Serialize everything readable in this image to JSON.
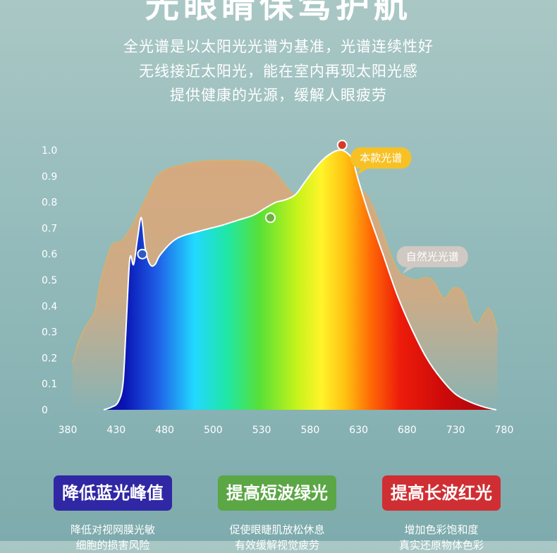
{
  "header": {
    "title": "光眼睛保驾护航",
    "lines": [
      "全光谱是以太阳光光谱为基准，光谱连续性好",
      "无线接近太阳光，能在室内再现太阳光感",
      "提供健康的光源，缓解人眼疲劳"
    ]
  },
  "chart_data": {
    "type": "area",
    "xticks": [
      380,
      430,
      480,
      500,
      530,
      580,
      630,
      680,
      730,
      780
    ],
    "yticks": [
      0,
      0.1,
      0.2,
      0.3,
      0.4,
      0.5,
      0.6,
      0.7,
      0.8,
      0.9,
      1.0
    ],
    "ytick_labels": [
      "0",
      "0.1",
      "0.2",
      "0.3",
      "0.4",
      "0.5",
      "0.6",
      "0.7",
      "0.8",
      "0.9",
      "1.0"
    ],
    "ylim": [
      0,
      1.0
    ],
    "grid": false,
    "series": [
      {
        "name": "自然光光谱",
        "color": "#d6a97e",
        "x": [
          385,
          392,
          400,
          408,
          414,
          425,
          435,
          445,
          460,
          475,
          490,
          500,
          515,
          530,
          545,
          560,
          575,
          590,
          605,
          620,
          635,
          645,
          655,
          665,
          672,
          680,
          690,
          700,
          708,
          718,
          728,
          738,
          746,
          752,
          758,
          763,
          768,
          773
        ],
        "values": [
          0.18,
          0.27,
          0.33,
          0.38,
          0.5,
          0.63,
          0.65,
          0.7,
          0.81,
          0.91,
          0.95,
          0.96,
          0.96,
          0.95,
          0.91,
          0.84,
          0.8,
          0.8,
          0.83,
          0.85,
          0.84,
          0.78,
          0.68,
          0.58,
          0.53,
          0.51,
          0.5,
          0.51,
          0.49,
          0.43,
          0.47,
          0.45,
          0.36,
          0.33,
          0.36,
          0.39,
          0.37,
          0.3
        ]
      },
      {
        "name": "本款光谱",
        "x": [
          417,
          425,
          432,
          437,
          440,
          444,
          448,
          452,
          456,
          460,
          465,
          470,
          476,
          485,
          495,
          505,
          515,
          525,
          535,
          545,
          555,
          565,
          575,
          585,
          595,
          605,
          612,
          618,
          624,
          630,
          640,
          655,
          670,
          685,
          700,
          715,
          730,
          745,
          760,
          772
        ],
        "values": [
          0.0,
          0.01,
          0.03,
          0.1,
          0.3,
          0.58,
          0.56,
          0.66,
          0.74,
          0.62,
          0.56,
          0.56,
          0.6,
          0.66,
          0.69,
          0.71,
          0.73,
          0.75,
          0.78,
          0.8,
          0.81,
          0.83,
          0.88,
          0.93,
          0.97,
          0.995,
          1.0,
          0.99,
          0.96,
          0.88,
          0.76,
          0.6,
          0.44,
          0.31,
          0.2,
          0.12,
          0.06,
          0.03,
          0.01,
          0.0
        ]
      }
    ],
    "markers": [
      {
        "x": 457,
        "y": 0.6,
        "color": "#2e57c8"
      },
      {
        "x": 539,
        "y": 0.74,
        "color": "#6cb043"
      },
      {
        "x": 613,
        "y": 1.02,
        "color": "#d63b2a"
      }
    ],
    "callouts": [
      {
        "label": "本款光谱",
        "bg": "#f7c126",
        "color": "#ffffff",
        "x": 653,
        "y": 0.97
      },
      {
        "label": "自然光光谱",
        "bg": "#cfc8c3",
        "color": "#ffffff",
        "x": 706,
        "y": 0.59
      }
    ]
  },
  "features": [
    {
      "title": "降低蓝光峰值",
      "color": "#3027a4",
      "lines": [
        "降低对视网膜光敏",
        "细胞的损害风险"
      ]
    },
    {
      "title": "提高短波绿光",
      "color": "#5ba645",
      "lines": [
        "促使眼睫肌放松休息",
        "有效缓解视觉疲劳"
      ]
    },
    {
      "title": "提高长波红光",
      "color": "#cf2f33",
      "lines": [
        "增加色彩饱和度",
        "真实还原物体色彩"
      ]
    }
  ]
}
